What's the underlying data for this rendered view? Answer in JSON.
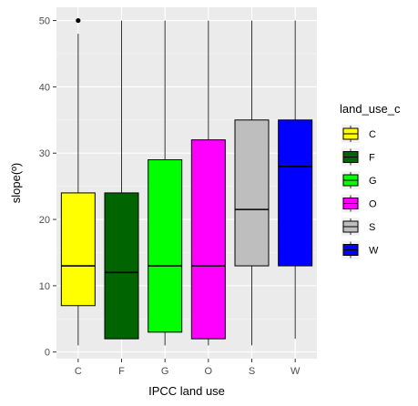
{
  "chart_data": {
    "type": "boxplot",
    "xlabel": "IPCC land use",
    "ylabel": "slope(º)",
    "ylim": [
      -1,
      52
    ],
    "yticks": [
      0,
      10,
      20,
      30,
      40,
      50
    ],
    "grid": true,
    "legend": {
      "title": "land_use_c",
      "position": "right"
    },
    "categories": [
      "C",
      "F",
      "G",
      "O",
      "S",
      "W"
    ],
    "boxes": [
      {
        "category": "C",
        "min": 1,
        "q1": 7,
        "median": 13,
        "q3": 24,
        "max": 48,
        "outliers": [
          50
        ],
        "color": "#FFFF00"
      },
      {
        "category": "F",
        "min": 2,
        "q1": 2,
        "median": 12,
        "q3": 24,
        "max": 50,
        "outliers": [],
        "color": "#006400"
      },
      {
        "category": "G",
        "min": 1,
        "q1": 3,
        "median": 13,
        "q3": 29,
        "max": 50,
        "outliers": [],
        "color": "#00FF00"
      },
      {
        "category": "O",
        "min": 1,
        "q1": 2,
        "median": 13,
        "q3": 32,
        "max": 50,
        "outliers": [],
        "color": "#FF00FF"
      },
      {
        "category": "S",
        "min": 1,
        "q1": 13,
        "median": 21.5,
        "q3": 35,
        "max": 50,
        "outliers": [],
        "color": "#BEBEBE"
      },
      {
        "category": "W",
        "min": 2,
        "q1": 13,
        "median": 28,
        "q3": 35,
        "max": 50,
        "outliers": [],
        "color": "#0000FF"
      }
    ]
  },
  "colors": {
    "panel_background": "#EBEBEB",
    "grid_major": "#FFFFFF",
    "box_outline": "#000000",
    "whisker": "#333333"
  }
}
